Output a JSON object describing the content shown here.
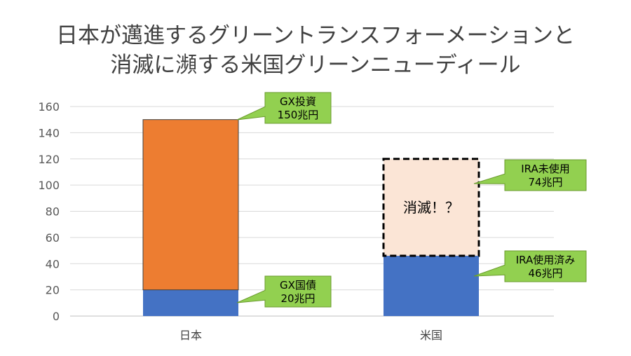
{
  "title": {
    "line1": "日本が邁進するグリーントランスフォーメーションと",
    "line2": "消滅に瀕する米国グリーンニューディール"
  },
  "chart_data": {
    "type": "bar",
    "stacked": true,
    "categories": [
      "日本",
      "米国"
    ],
    "ylim": [
      0,
      160
    ],
    "yticks": [
      0,
      20,
      40,
      60,
      80,
      100,
      120,
      140,
      160
    ],
    "grid": true,
    "series": [
      {
        "values": [
          20,
          46
        ],
        "color": "#4472C4",
        "style": "solid"
      },
      {
        "values": [
          130,
          74
        ],
        "color": "#ED7D31",
        "style": "solid",
        "alt_color": "#FBE5D6"
      }
    ],
    "segment_styles": {
      "日本": [
        "solid-blue",
        "solid-orange"
      ],
      "米国": [
        "solid-blue",
        "dashed-light"
      ]
    },
    "dashed_label": "消滅！？",
    "callouts": [
      {
        "line1": "GX投資",
        "line2": "150兆円",
        "target": "日本-top"
      },
      {
        "line1": "GX国債",
        "line2": "20兆円",
        "target": "日本-bottom"
      },
      {
        "line1": "IRA未使用",
        "line2": "74兆円",
        "target": "米国-top"
      },
      {
        "line1": "IRA使用済み",
        "line2": "46兆円",
        "target": "米国-bottom"
      }
    ],
    "callout_color": "#92D050"
  }
}
